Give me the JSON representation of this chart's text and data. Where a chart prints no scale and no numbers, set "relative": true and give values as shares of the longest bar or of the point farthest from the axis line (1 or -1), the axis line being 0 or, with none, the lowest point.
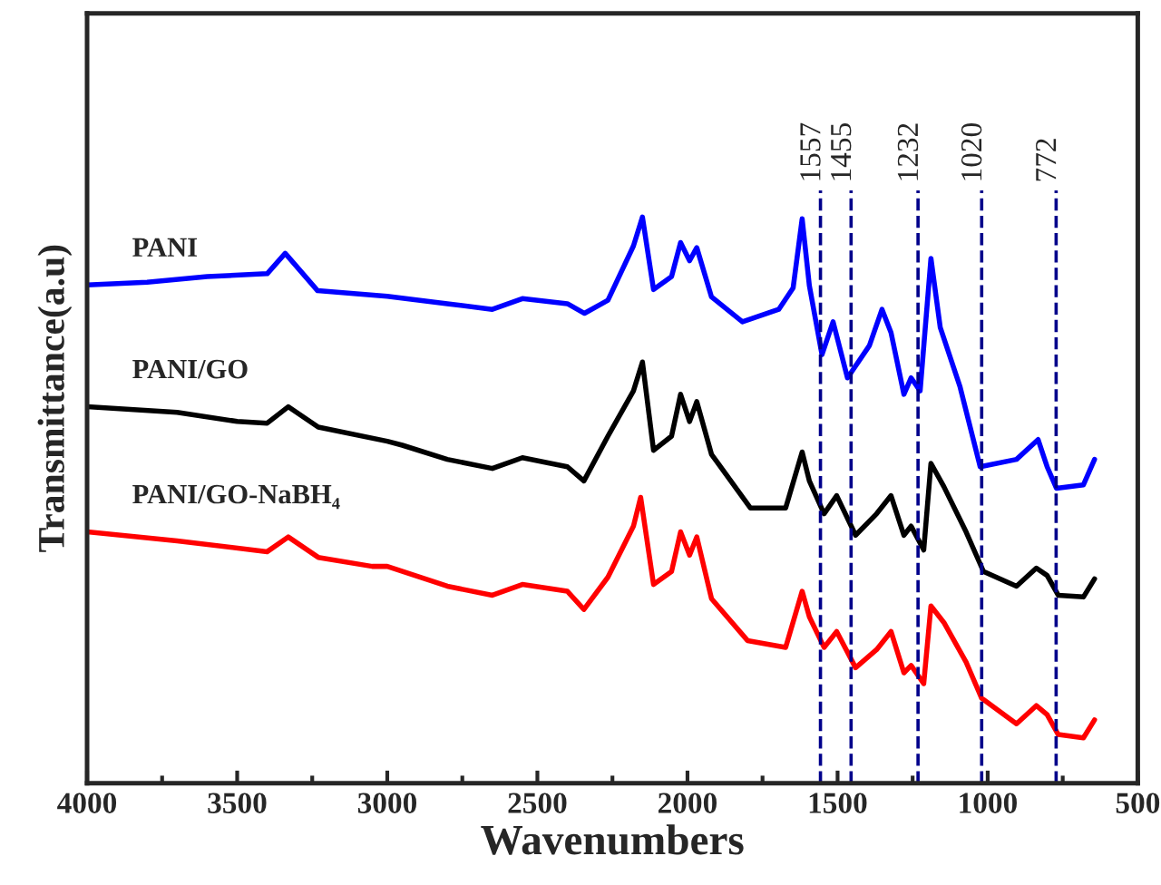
{
  "chart_data": {
    "type": "line",
    "relative": true,
    "xlabel": "Wavenumbers",
    "ylabel": "Transmittance(a.u)",
    "xlim": [
      4000,
      500
    ],
    "xticks": [
      4000,
      3500,
      3000,
      2500,
      2000,
      1500,
      1000,
      500
    ],
    "tick_labels": "x",
    "marker": "none",
    "line_style": "solid",
    "grid": false,
    "legend": false,
    "series": [
      {
        "name": "PANI",
        "color": "#0000ff",
        "x": [
          4000,
          3800,
          3600,
          3400,
          3340,
          3232,
          3000,
          2800,
          2650,
          2550,
          2400,
          2343,
          2265,
          2180,
          2150,
          2113,
          2053,
          2023,
          1993,
          1969,
          1920,
          1817,
          1696,
          1648,
          1618,
          1594,
          1552,
          1515,
          1467,
          1394,
          1352,
          1322,
          1279,
          1255,
          1225,
          1189,
          1158,
          1092,
          1025,
          904,
          832,
          802,
          771,
          681,
          644
        ],
        "values": [
          0.88,
          0.885,
          0.895,
          0.9,
          0.936,
          0.87,
          0.86,
          0.847,
          0.837,
          0.856,
          0.847,
          0.83,
          0.853,
          0.949,
          1.0,
          0.872,
          0.895,
          0.955,
          0.923,
          0.946,
          0.859,
          0.815,
          0.837,
          0.875,
          0.997,
          0.879,
          0.757,
          0.815,
          0.716,
          0.773,
          0.837,
          0.796,
          0.687,
          0.716,
          0.693,
          0.927,
          0.805,
          0.7,
          0.559,
          0.572,
          0.607,
          0.559,
          0.521,
          0.527,
          0.572
        ]
      },
      {
        "name": "PANI/GO",
        "color": "#000000",
        "x": [
          4000,
          3700,
          3500,
          3400,
          3330,
          3230,
          3000,
          2950,
          2800,
          2650,
          2550,
          2400,
          2345,
          2265,
          2180,
          2150,
          2113,
          2053,
          2023,
          1993,
          1969,
          1920,
          1790,
          1673,
          1618,
          1594,
          1545,
          1503,
          1440,
          1370,
          1322,
          1279,
          1255,
          1213,
          1189,
          1146,
          1072,
          1014,
          904,
          838,
          802,
          765,
          681,
          644
        ],
        "values": [
          0.665,
          0.655,
          0.639,
          0.636,
          0.665,
          0.629,
          0.604,
          0.597,
          0.572,
          0.556,
          0.575,
          0.559,
          0.534,
          0.613,
          0.693,
          0.744,
          0.588,
          0.613,
          0.687,
          0.639,
          0.674,
          0.581,
          0.486,
          0.486,
          0.585,
          0.534,
          0.476,
          0.508,
          0.438,
          0.476,
          0.508,
          0.438,
          0.454,
          0.412,
          0.565,
          0.524,
          0.444,
          0.374,
          0.348,
          0.38,
          0.367,
          0.332,
          0.329,
          0.361
        ]
      },
      {
        "name": "PANI/GO-NaBH₄",
        "color": "#ff0000",
        "x": [
          4000,
          3700,
          3400,
          3330,
          3230,
          3050,
          3000,
          2800,
          2650,
          2550,
          2400,
          2345,
          2265,
          2180,
          2156,
          2113,
          2053,
          2023,
          1993,
          1969,
          1920,
          1800,
          1673,
          1618,
          1594,
          1545,
          1503,
          1440,
          1370,
          1322,
          1279,
          1255,
          1213,
          1189,
          1146,
          1072,
          1020,
          904,
          838,
          802,
          765,
          681,
          644
        ],
        "values": [
          0.444,
          0.428,
          0.409,
          0.435,
          0.399,
          0.383,
          0.383,
          0.348,
          0.332,
          0.351,
          0.339,
          0.307,
          0.364,
          0.454,
          0.505,
          0.351,
          0.374,
          0.444,
          0.403,
          0.435,
          0.326,
          0.252,
          0.24,
          0.339,
          0.294,
          0.24,
          0.268,
          0.204,
          0.236,
          0.268,
          0.195,
          0.208,
          0.176,
          0.313,
          0.284,
          0.214,
          0.15,
          0.105,
          0.137,
          0.121,
          0.086,
          0.08,
          0.112
        ]
      }
    ],
    "ref_lines": [
      {
        "axis": "x",
        "value": 1557,
        "label": "1557",
        "color": "#00008b",
        "line_style": "dashed"
      },
      {
        "axis": "x",
        "value": 1455,
        "label": "1455",
        "color": "#00008b",
        "line_style": "dashed"
      },
      {
        "axis": "x",
        "value": 1232,
        "label": "1232",
        "color": "#00008b",
        "line_style": "dashed"
      },
      {
        "axis": "x",
        "value": 1020,
        "label": "1020",
        "color": "#00008b",
        "line_style": "dashed"
      },
      {
        "axis": "x",
        "value": 772,
        "label": "772",
        "color": "#00008b",
        "line_style": "dashed"
      }
    ]
  }
}
